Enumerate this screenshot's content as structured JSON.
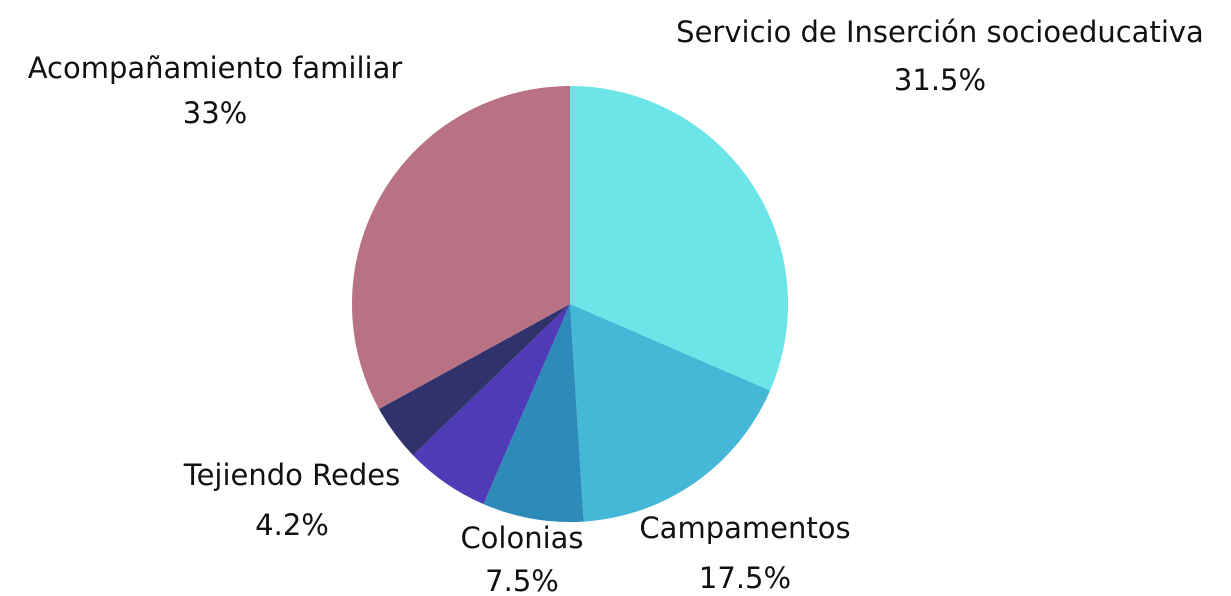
{
  "chart_data": {
    "type": "pie",
    "categories": [
      "Servicio de Inserción socioeducativa",
      "Campamentos",
      "Colonias",
      null,
      "Tejiendo Redes",
      "Acompañamiento familiar"
    ],
    "values": [
      31.5,
      17.5,
      7.5,
      6.3,
      4.2,
      33
    ],
    "value_labels": [
      "31.5%",
      "17.5%",
      "7.5%",
      null,
      "4.2%",
      "33%"
    ],
    "colors": [
      "#6be5e8",
      "#44b8d6",
      "#2e8bb9",
      "#4f3bb5",
      "#30336b",
      "#b87283"
    ]
  }
}
